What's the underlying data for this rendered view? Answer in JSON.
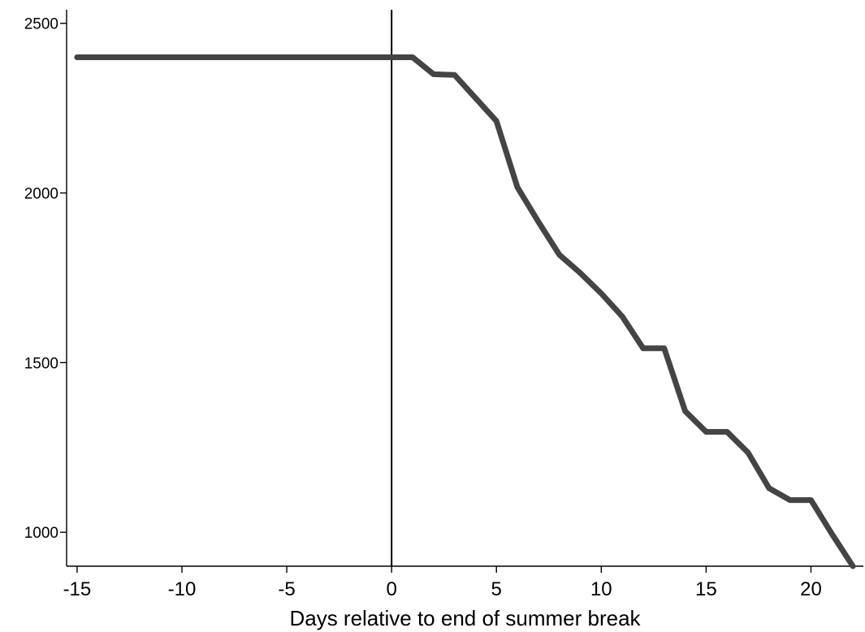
{
  "chart_data": {
    "type": "line",
    "title": "",
    "xlabel": "Days relative to end of summer break",
    "ylabel": "",
    "xlim": [
      -15.5,
      22.5
    ],
    "ylim": [
      900,
      2540
    ],
    "xticks": [
      -15,
      -10,
      -5,
      0,
      5,
      10,
      15,
      20
    ],
    "yticks": [
      1000,
      1500,
      2000,
      2500
    ],
    "grid": false,
    "legend": "none",
    "reference_lines": [
      {
        "axis": "x",
        "value": 0,
        "color": "#000000"
      }
    ],
    "series": [
      {
        "color": "#444444",
        "x": [
          -15,
          -14,
          -13,
          -12,
          -11,
          -10,
          -9,
          -8,
          -7,
          -6,
          -5,
          -4,
          -3,
          -2,
          -1,
          0,
          1,
          2,
          3,
          4,
          5,
          6,
          7,
          8,
          9,
          10,
          11,
          12,
          13,
          14,
          15,
          16,
          17,
          18,
          19,
          20,
          21,
          22
        ],
        "y": [
          2400,
          2400,
          2400,
          2400,
          2400,
          2400,
          2400,
          2400,
          2400,
          2400,
          2400,
          2400,
          2400,
          2400,
          2400,
          2400,
          2400,
          2350,
          2348,
          2280,
          2212,
          2017,
          1915,
          1818,
          1764,
          1704,
          1636,
          1542,
          1542,
          1357,
          1296,
          1296,
          1235,
          1130,
          1095,
          1095,
          995,
          900
        ]
      }
    ]
  }
}
